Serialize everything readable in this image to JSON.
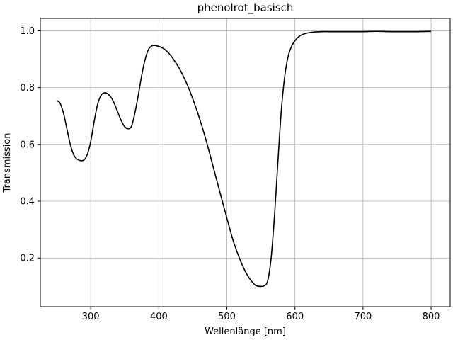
{
  "chart_data": {
    "type": "line",
    "title": "phenolrot_basisch",
    "xlabel": "Wellenlänge [nm]",
    "ylabel": "Transmission",
    "xlim": [
      226,
      828
    ],
    "ylim": [
      0.0285,
      1.0435
    ],
    "xticks": [
      300,
      400,
      500,
      600,
      700,
      800
    ],
    "yticks": [
      0.2,
      0.4,
      0.6,
      0.8,
      1.0
    ],
    "xtick_labels": [
      "300",
      "400",
      "500",
      "600",
      "700",
      "800"
    ],
    "ytick_labels": [
      "0.2",
      "0.4",
      "0.6",
      "0.8",
      "1.0"
    ],
    "grid": true,
    "line_color": "#000000",
    "series": [
      {
        "x": [
          250,
          255,
          260,
          265,
          270,
          275,
          280,
          285,
          290,
          295,
          300,
          305,
          310,
          315,
          320,
          325,
          330,
          335,
          340,
          345,
          350,
          355,
          360,
          365,
          370,
          375,
          380,
          385,
          390,
          395,
          400,
          405,
          410,
          415,
          420,
          430,
          440,
          450,
          460,
          470,
          480,
          490,
          500,
          510,
          520,
          530,
          540,
          545,
          550,
          555,
          560,
          565,
          570,
          575,
          580,
          585,
          590,
          595,
          600,
          605,
          610,
          615,
          620,
          630,
          640,
          650,
          660,
          680,
          700,
          720,
          740,
          760,
          780,
          800
        ],
        "y": [
          0.755,
          0.745,
          0.71,
          0.655,
          0.6,
          0.563,
          0.548,
          0.543,
          0.545,
          0.565,
          0.61,
          0.68,
          0.74,
          0.772,
          0.782,
          0.778,
          0.765,
          0.742,
          0.712,
          0.683,
          0.662,
          0.655,
          0.665,
          0.712,
          0.775,
          0.845,
          0.9,
          0.935,
          0.947,
          0.948,
          0.945,
          0.94,
          0.932,
          0.92,
          0.905,
          0.868,
          0.82,
          0.76,
          0.69,
          0.61,
          0.52,
          0.43,
          0.34,
          0.255,
          0.19,
          0.14,
          0.108,
          0.101,
          0.1,
          0.102,
          0.12,
          0.2,
          0.35,
          0.54,
          0.72,
          0.84,
          0.91,
          0.945,
          0.965,
          0.978,
          0.986,
          0.99,
          0.993,
          0.996,
          0.997,
          0.997,
          0.997,
          0.997,
          0.997,
          0.998,
          0.997,
          0.997,
          0.997,
          0.998
        ]
      }
    ]
  }
}
